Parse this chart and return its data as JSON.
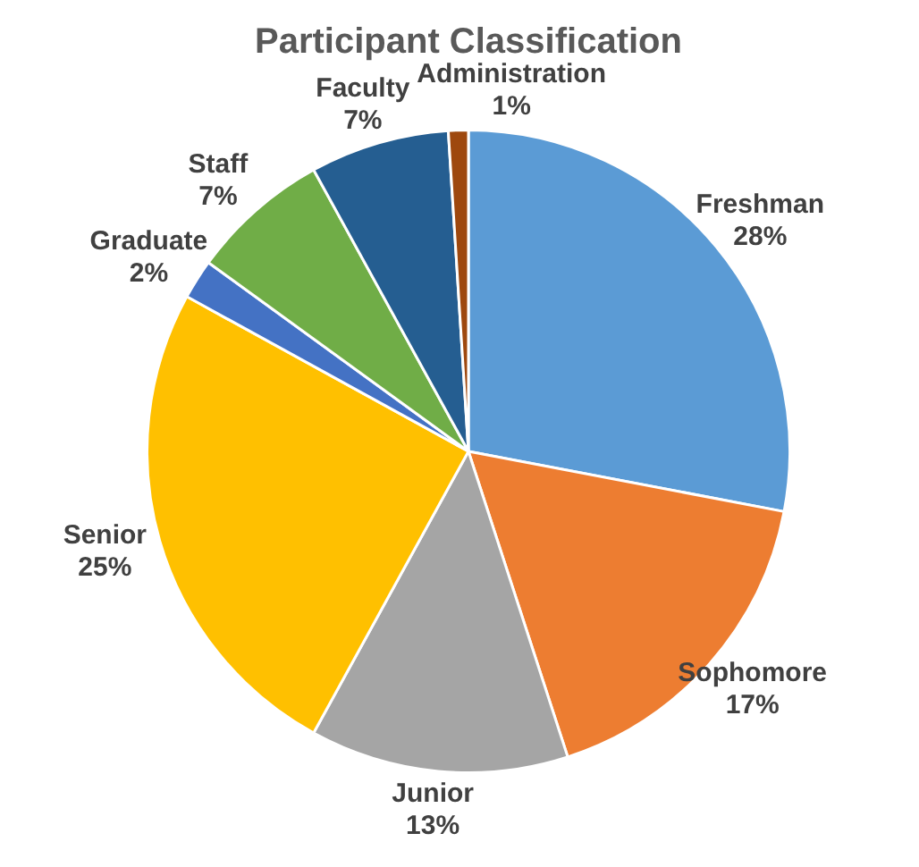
{
  "chart_data": {
    "type": "pie",
    "title": "Participant Classification",
    "categories": [
      "Freshman",
      "Sophomore",
      "Junior",
      "Senior",
      "Graduate",
      "Staff",
      "Faculty",
      "Administration"
    ],
    "values": [
      28,
      17,
      13,
      25,
      2,
      7,
      7,
      1
    ],
    "colors": [
      "#5b9bd5",
      "#ed7d31",
      "#a5a5a5",
      "#ffc000",
      "#4472c4",
      "#70ad47",
      "#255e91",
      "#9e480e"
    ],
    "value_labels": [
      "28%",
      "17%",
      "13%",
      "25%",
      "2%",
      "7%",
      "7%",
      "1%"
    ],
    "legend": false
  }
}
